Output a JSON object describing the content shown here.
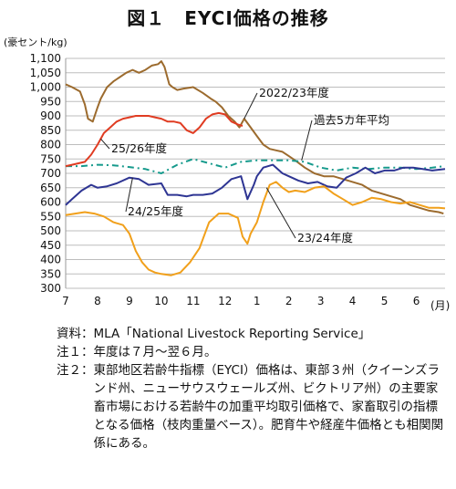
{
  "figure_title": "図１　EYCI価格の推移",
  "y_unit_label": "(豪セント/kg)",
  "x_unit_label": "(月)",
  "chart_data": {
    "type": "line",
    "title": "図１　EYCI価格の推移",
    "ylabel": "(豪セント/kg)",
    "xlabel": "(月)",
    "ylim": [
      300,
      1100
    ],
    "y_ticks": [
      "300",
      "350",
      "400",
      "450",
      "500",
      "550",
      "600",
      "650",
      "700",
      "750",
      "800",
      "850",
      "900",
      "950",
      "1,000",
      "1,050",
      "1,100"
    ],
    "x_ticks": [
      "7",
      "8",
      "9",
      "10",
      "11",
      "12",
      "1",
      "2",
      "3",
      "4",
      "5",
      "6"
    ],
    "xlim": [
      7,
      18.9
    ],
    "grid": "horizontal",
    "series": [
      {
        "name": "2022/23年度",
        "color": "#9c6b2e",
        "dash": "solid",
        "width": 2,
        "x": [
          7,
          7.2,
          7.45,
          7.6,
          7.7,
          7.85,
          8,
          8.1,
          8.3,
          8.5,
          8.7,
          8.9,
          9.1,
          9.3,
          9.5,
          9.7,
          9.9,
          10,
          10.1,
          10.25,
          10.35,
          10.5,
          10.7,
          11,
          11.3,
          11.55,
          11.7,
          11.9,
          12.1,
          12.3,
          12.45,
          12.6,
          12.8,
          13.0,
          13.2,
          13.4,
          13.6,
          13.8,
          14.0,
          14.2,
          14.5,
          14.8,
          15.1,
          15.4,
          15.7,
          16.0,
          16.3,
          16.6,
          16.9,
          17.2,
          17.5,
          17.8,
          18.1,
          18.4,
          18.7,
          18.85
        ],
        "y": [
          1010,
          1000,
          985,
          940,
          890,
          880,
          930,
          960,
          1000,
          1020,
          1035,
          1050,
          1060,
          1050,
          1060,
          1075,
          1080,
          1090,
          1070,
          1010,
          1000,
          990,
          995,
          1000,
          980,
          960,
          950,
          930,
          900,
          880,
          860,
          890,
          860,
          830,
          800,
          785,
          780,
          775,
          760,
          745,
          720,
          700,
          690,
          690,
          680,
          670,
          660,
          640,
          630,
          620,
          610,
          590,
          580,
          570,
          565,
          560
        ]
      },
      {
        "name": "過去5カ年平均",
        "color": "#169a8c",
        "dash": "7,4,2,4",
        "width": 2,
        "x": [
          7,
          7.5,
          8,
          8.5,
          9,
          9.5,
          10,
          10.5,
          11,
          11.5,
          12,
          12.5,
          13,
          13.5,
          14,
          14.5,
          15,
          15.5,
          16,
          16.5,
          17,
          17.5,
          18,
          18.5,
          18.9
        ],
        "y": [
          725,
          725,
          730,
          728,
          722,
          715,
          700,
          730,
          750,
          735,
          720,
          740,
          745,
          745,
          745,
          740,
          720,
          710,
          720,
          715,
          720,
          720,
          715,
          720,
          725
        ]
      },
      {
        "name": "25/26年度",
        "color": "#e03c22",
        "dash": "solid",
        "width": 2,
        "x": [
          7,
          7.2,
          7.4,
          7.6,
          7.8,
          8,
          8.2,
          8.4,
          8.6,
          8.8,
          9.0,
          9.2,
          9.4,
          9.6,
          9.8,
          10,
          10.2,
          10.4,
          10.6,
          10.8,
          11,
          11.2,
          11.4,
          11.6,
          11.8,
          12,
          12.2,
          12.4,
          12.55
        ],
        "y": [
          725,
          730,
          735,
          740,
          765,
          800,
          840,
          860,
          880,
          890,
          895,
          900,
          900,
          900,
          895,
          890,
          880,
          880,
          875,
          850,
          840,
          860,
          890,
          905,
          910,
          905,
          880,
          870,
          865
        ]
      },
      {
        "name": "24/25年度",
        "color": "#2e3593",
        "dash": "solid",
        "width": 2,
        "x": [
          7,
          7.2,
          7.5,
          7.8,
          8,
          8.3,
          8.6,
          9,
          9.3,
          9.6,
          10,
          10.2,
          10.5,
          10.8,
          11,
          11.3,
          11.6,
          11.9,
          12.2,
          12.5,
          12.7,
          12.9,
          13.0,
          13.2,
          13.5,
          13.8,
          14.0,
          14.3,
          14.6,
          14.9,
          15.2,
          15.5,
          15.8,
          16.1,
          16.4,
          16.7,
          17.0,
          17.3,
          17.6,
          17.9,
          18.2,
          18.5,
          18.9
        ],
        "y": [
          590,
          610,
          640,
          660,
          650,
          655,
          665,
          685,
          680,
          660,
          665,
          625,
          625,
          620,
          625,
          625,
          630,
          650,
          680,
          690,
          610,
          660,
          690,
          720,
          730,
          700,
          690,
          675,
          665,
          670,
          655,
          650,
          685,
          700,
          720,
          700,
          710,
          710,
          720,
          720,
          715,
          710,
          715
        ]
      },
      {
        "name": "23/24年度",
        "color": "#f1a01b",
        "dash": "solid",
        "width": 2,
        "x": [
          7,
          7.3,
          7.6,
          7.9,
          8.2,
          8.5,
          8.8,
          9.0,
          9.2,
          9.4,
          9.6,
          9.8,
          10.0,
          10.3,
          10.6,
          10.9,
          11.2,
          11.5,
          11.8,
          12.1,
          12.4,
          12.55,
          12.7,
          12.8,
          13.0,
          13.2,
          13.4,
          13.6,
          13.8,
          14.0,
          14.2,
          14.5,
          14.8,
          15.1,
          15.4,
          15.7,
          16.0,
          16.3,
          16.6,
          16.9,
          17.2,
          17.5,
          17.8,
          18.1,
          18.4,
          18.7,
          18.9
        ],
        "y": [
          555,
          560,
          565,
          560,
          550,
          530,
          520,
          490,
          430,
          390,
          365,
          355,
          350,
          345,
          355,
          390,
          440,
          530,
          560,
          560,
          545,
          480,
          455,
          490,
          530,
          600,
          660,
          670,
          650,
          635,
          640,
          635,
          650,
          655,
          630,
          610,
          590,
          600,
          615,
          610,
          600,
          595,
          600,
          590,
          580,
          580,
          578
        ]
      }
    ],
    "annotations": [
      {
        "text": "2022/23年度",
        "series": "2022/23年度"
      },
      {
        "text": "過去5カ年平均",
        "series": "過去5カ年平均"
      },
      {
        "text": "25/26年度",
        "series": "25/26年度"
      },
      {
        "text": "24/25年度",
        "series": "24/25年度"
      },
      {
        "text": "23/24年度",
        "series": "23/24年度"
      }
    ]
  },
  "notes": [
    {
      "head": "資料：",
      "body": "MLA「National Livestock Reporting Service」"
    },
    {
      "head": "注１：",
      "body": "年度は７月〜翌６月。"
    },
    {
      "head": "注２：",
      "body": "東部地区若齢牛指標（EYCI）価格は、東部３州（クイーンズランド州、ニューサウスウェールズ州、ビクトリア州）の主要家畜市場における若齢牛の加重平均取引価格で、家畜取引の指標となる価格（枝肉重量ベース）。肥育牛や経産牛価格とも相関関係にある。"
    }
  ]
}
